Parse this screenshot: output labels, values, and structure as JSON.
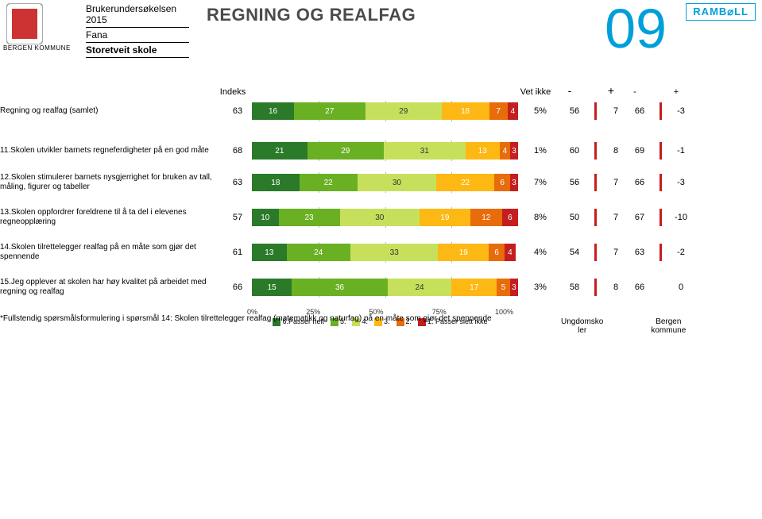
{
  "header": {
    "bergen_text": "BERGEN KOMMUNE",
    "survey": "Brukerundersøkelsen 2015",
    "district": "Fana",
    "school": "Storetveit skole",
    "title": "REGNING OG REALFAG",
    "page_number": "09",
    "brand": "RAMB⌀LL",
    "brand_color": "#009fda"
  },
  "columns": {
    "indeks": "Indeks",
    "vet_ikke": "Vet ikke",
    "minus": "-",
    "plus": "+",
    "cmp1": "Ungdomsko\nler",
    "cmp2": "Bergen\nkommune"
  },
  "scale_colors": {
    "6": "#2a7a2a",
    "5": "#6ab023",
    "4": "#c7e05c",
    "3": "#fdb813",
    "2": "#e86c0a",
    "1": "#c41e1e"
  },
  "tick_color": "#c41e1e",
  "axis": [
    "0%",
    "25%",
    "50%",
    "75%",
    "100%"
  ],
  "legend": [
    {
      "c": "6",
      "t": "6.Passer helt"
    },
    {
      "c": "5",
      "t": "5."
    },
    {
      "c": "4",
      "t": "4."
    },
    {
      "c": "3",
      "t": "3."
    },
    {
      "c": "2",
      "t": "2."
    },
    {
      "c": "1",
      "t": "1. Passer slett ikke"
    }
  ],
  "rows": [
    {
      "label": "Regning og realfag (samlet)",
      "idx": 63,
      "segs": [
        16,
        27,
        29,
        18,
        7,
        4
      ],
      "vet": "5%",
      "minus": 56,
      "plus": 7,
      "cmp_minus": 66,
      "cmp_plus": -3,
      "ticks": [
        1,
        1
      ]
    },
    {
      "label": "11.Skolen utvikler barnets regneferdigheter på en god måte",
      "idx": 68,
      "segs": [
        21,
        29,
        31,
        13,
        4,
        3
      ],
      "vet": "1%",
      "minus": 60,
      "plus": 8,
      "cmp_minus": 69,
      "cmp_plus": -1,
      "ticks": [
        1,
        1
      ]
    },
    {
      "label": "12.Skolen stimulerer barnets nysgjerrighet for bruken av tall, måling, figurer og tabeller",
      "idx": 63,
      "segs": [
        18,
        22,
        30,
        22,
        6,
        3
      ],
      "vet": "7%",
      "minus": 56,
      "plus": 7,
      "cmp_minus": 66,
      "cmp_plus": -3,
      "ticks": [
        1,
        1
      ]
    },
    {
      "label": "13.Skolen oppfordrer foreldrene til å ta del i elevenes regneopplæring",
      "idx": 57,
      "segs": [
        10,
        23,
        30,
        19,
        12,
        6
      ],
      "vet": "8%",
      "minus": 50,
      "plus": 7,
      "cmp_minus": 67,
      "cmp_plus": -10,
      "ticks": [
        1,
        1
      ]
    },
    {
      "label": "14.Skolen tilrettelegger realfag på en måte som gjør det spennende",
      "idx": 61,
      "segs": [
        13,
        24,
        33,
        19,
        6,
        4
      ],
      "vet": "4%",
      "minus": 54,
      "plus": 7,
      "cmp_minus": 63,
      "cmp_plus": -2,
      "ticks": [
        1,
        1
      ]
    },
    {
      "label": "15.Jeg opplever at skolen har høy kvalitet på arbeidet med regning og realfag",
      "idx": 66,
      "segs": [
        15,
        36,
        24,
        17,
        5,
        3
      ],
      "vet": "3%",
      "minus": 58,
      "plus": 8,
      "cmp_minus": 66,
      "cmp_plus": 0,
      "ticks": [
        1,
        0
      ]
    }
  ],
  "footnote": "*Fullstendig spørsmålsformulering i spørsmål 14: Skolen tilrettelegger realfag (matematikk og naturfag) på en måte som gjør det spennende"
}
